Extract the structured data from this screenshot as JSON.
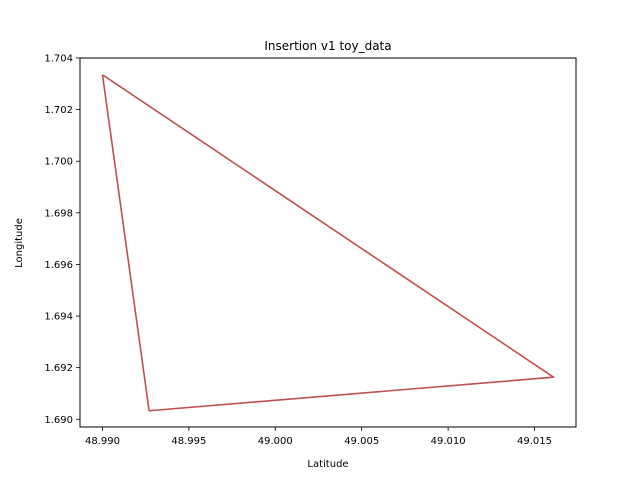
{
  "chart_data": {
    "type": "line",
    "title": "Insertion v1 toy_data",
    "xlabel": "Latitude",
    "ylabel": "Longitude",
    "xlim": [
      48.9887,
      49.0174
    ],
    "ylim": [
      1.6897,
      1.704
    ],
    "xticks": [
      48.99,
      48.995,
      49.0,
      49.005,
      49.01,
      49.015
    ],
    "xtick_labels": [
      "48.990",
      "48.995",
      "49.000",
      "49.005",
      "49.010",
      "49.015"
    ],
    "yticks": [
      1.69,
      1.692,
      1.694,
      1.696,
      1.698,
      1.7,
      1.702,
      1.704
    ],
    "ytick_labels": [
      "1.690",
      "1.692",
      "1.694",
      "1.696",
      "1.698",
      "1.700",
      "1.702",
      "1.704"
    ],
    "grid": false,
    "series": [
      {
        "color": "#c0504d",
        "x": [
          48.99,
          49.0161,
          48.9927,
          48.99
        ],
        "y": [
          1.70335,
          1.69163,
          1.69033,
          1.70335
        ]
      }
    ]
  }
}
